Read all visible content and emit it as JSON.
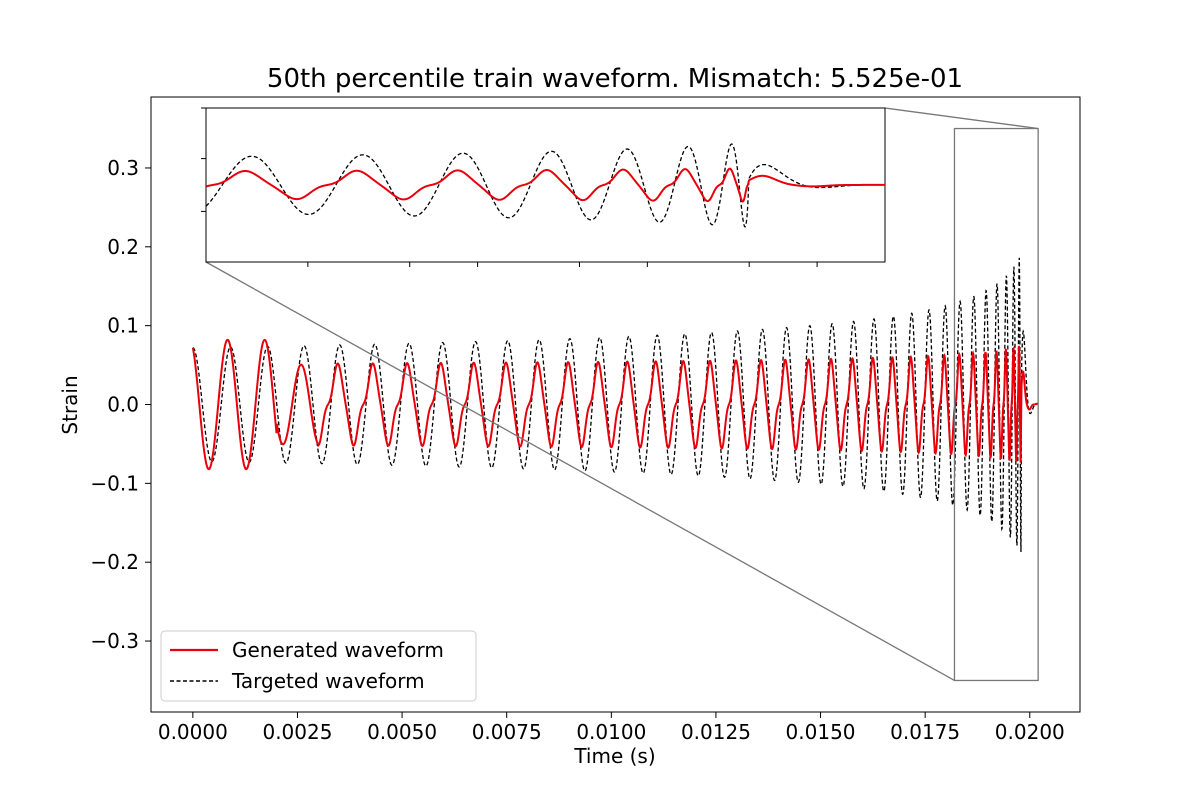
{
  "chart_data": {
    "type": "line",
    "title": "50th percentile train waveform. Mismatch: 5.525e-01",
    "xlabel": "Time (s)",
    "ylabel": "Strain",
    "xlim": [
      -0.001,
      0.0212
    ],
    "ylim": [
      -0.39,
      0.39
    ],
    "xticks": [
      0.0,
      0.0025,
      0.005,
      0.0075,
      0.01,
      0.0125,
      0.015,
      0.0175,
      0.02
    ],
    "xtick_labels": [
      "0.0000",
      "0.0025",
      "0.0050",
      "0.0075",
      "0.0100",
      "0.0125",
      "0.0150",
      "0.0175",
      "0.0200"
    ],
    "yticks": [
      -0.3,
      -0.2,
      -0.1,
      0.0,
      0.1,
      0.2,
      0.3
    ],
    "ytick_labels": [
      "−0.3",
      "−0.2",
      "−0.1",
      "0.0",
      "0.1",
      "0.2",
      "0.3"
    ],
    "legend_position": "lower-left",
    "grid": false,
    "series": [
      {
        "name": "Generated waveform",
        "color": "#e8000b",
        "style": "solid",
        "description_values": {
          "t_end": 0.0202,
          "cycles_approx": 37,
          "amplitude_start": 0.082,
          "amplitude_mid": 0.05,
          "amplitude_merger_peak": 0.1
        }
      },
      {
        "name": "Targeted waveform",
        "color": "#000000",
        "style": "dashed",
        "description_values": {
          "t_end": 0.0202,
          "cycles_approx": 37,
          "amplitude_start": 0.072,
          "amplitude_mid": 0.075,
          "amplitude_merger_peak": 0.25
        }
      }
    ],
    "inset": {
      "xlim": [
        0.0182,
        0.0202
      ],
      "ylim": [
        -0.35,
        0.35
      ],
      "xticks": [
        0.0185,
        0.0188,
        0.019,
        0.0193,
        0.0195,
        0.0198,
        0.02
      ],
      "yticks": [
        0.3,
        0.2
      ]
    }
  }
}
